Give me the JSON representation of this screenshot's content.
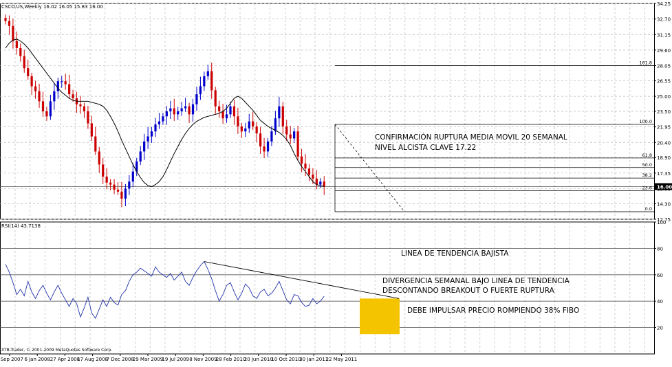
{
  "colors": {
    "background": "#ffffff",
    "grid": "#b8b8b8",
    "frame": "#000000",
    "bull_candle": "#0000cc",
    "bear_candle": "#cc0000",
    "moving_average": "#000000",
    "rsi_line": "#2233aa",
    "fibo": "#000000",
    "annotation_text": "#000000",
    "highlight": "#f5c400"
  },
  "chart_data": [
    {
      "type": "candlestick",
      "title": "CSCO.US,Weekly  16.02 16.05 15.83 16.00",
      "symbol": "CSCO.US",
      "timeframe": "Weekly",
      "ohlc_last": {
        "open": 16.02,
        "high": 16.05,
        "low": 15.83,
        "close": 16.0
      },
      "x_tick_labels": [
        "5 Sep 2007",
        "6 Jan 2008",
        "27 Apr 2008",
        "17 Aug 2008",
        "7 Dec 2008",
        "29 Mar 2009",
        "19 Jul 2009",
        "8 Nov 2009",
        "28 Feb 2010",
        "20 Jun 2010",
        "10 Oct 2010",
        "30 Jan 2011",
        "22 May 2011"
      ],
      "y_tick_labels": [
        "34.25",
        "32.70",
        "31.15",
        "29.60",
        "28.05",
        "26.55",
        "25.00",
        "23.50",
        "21.95",
        "20.40",
        "18.90",
        "17.35",
        "15.80",
        "14.30",
        "12.75"
      ],
      "ylim": [
        12.75,
        34.25
      ],
      "current_price_label": "16.00",
      "moving_average": {
        "period": 20,
        "values": [
          29.8,
          30.3,
          30.6,
          30.7,
          30.5,
          30.2,
          29.8,
          29.3,
          28.8,
          28.3,
          27.8,
          27.3,
          26.8,
          26.3,
          25.8,
          25.4,
          25.1,
          24.8,
          24.6,
          24.5,
          24.5,
          24.5,
          24.5,
          24.4,
          24.3,
          24.2,
          24.0,
          23.6,
          23.0,
          22.3,
          21.5,
          20.6,
          19.8,
          19.0,
          18.2,
          17.5,
          16.9,
          16.4,
          16.1,
          16.0,
          16.2,
          16.5,
          17.0,
          17.7,
          18.5,
          19.3,
          20.0,
          20.7,
          21.3,
          21.8,
          22.2,
          22.5,
          22.7,
          22.9,
          23.0,
          23.1,
          23.2,
          23.3,
          23.5,
          23.8,
          24.3,
          24.8,
          25.0,
          24.8,
          24.4,
          24.0,
          23.6,
          23.1,
          22.6,
          22.3,
          22.0,
          21.8,
          21.6,
          21.4,
          21.1,
          20.7,
          20.1,
          19.3,
          18.6,
          18.0,
          17.5,
          17.0,
          16.5,
          16.2,
          16.1,
          16.0
        ]
      },
      "series": [
        {
          "name": "CSCO.US",
          "close": [
            32.5,
            32.0,
            30.5,
            29.8,
            29.0,
            27.8,
            27.0,
            26.0,
            25.5,
            24.5,
            23.5,
            23.0,
            24.5,
            25.5,
            26.5,
            26.5,
            26.2,
            25.2,
            24.8,
            24.2,
            24.0,
            23.5,
            22.3,
            21.0,
            19.5,
            18.2,
            17.0,
            16.4,
            16.2,
            15.7,
            15.5,
            14.8,
            15.8,
            16.5,
            17.5,
            18.5,
            19.5,
            20.5,
            21.0,
            21.5,
            22.2,
            22.5,
            23.0,
            23.5,
            23.8,
            23.2,
            23.5,
            23.8,
            24.0,
            23.2,
            24.2,
            25.2,
            26.0,
            27.0,
            27.5,
            25.6,
            24.0,
            23.5,
            22.8,
            23.2,
            24.0,
            23.0,
            22.0,
            21.5,
            21.8,
            22.5,
            22.0,
            21.3,
            20.0,
            19.5,
            20.5,
            21.5,
            22.8,
            24.0,
            22.0,
            21.2,
            20.8,
            21.5,
            19.0,
            18.3,
            17.8,
            17.2,
            16.8,
            16.2,
            16.5,
            16.0
          ]
        },
        {
          "name": "Media Movil 20",
          "values": "moving_average"
        }
      ],
      "fibonacci_levels": [
        {
          "label": "161.8",
          "price": 28.05
        },
        {
          "label": "100.0",
          "price": 22.2
        },
        {
          "label": "61.8",
          "price": 18.85
        },
        {
          "label": "50.0",
          "price": 17.9
        },
        {
          "label": "38.2",
          "price": 16.85
        },
        {
          "label": "23.6",
          "price": 15.6
        },
        {
          "label": "0.0",
          "price": 13.5
        }
      ],
      "annotations": [
        "CONFIRMACIÓN RUPTURA MEDIA MOVIL 20 SEMANAL",
        "NIVEL ALCISTA CLAVE 17.22"
      ]
    },
    {
      "type": "line",
      "title": "RSI(14) 43.7138",
      "indicator": "RSI",
      "period": 14,
      "last_value": 43.7138,
      "ylim": [
        0,
        100
      ],
      "y_tick_labels": [
        "100",
        "80",
        "60",
        "40",
        "20"
      ],
      "levels": [
        80,
        60,
        40,
        20
      ],
      "series": [
        {
          "name": "RSI(14)",
          "values": [
            68,
            62,
            54,
            45,
            49,
            44,
            55,
            47,
            42,
            48,
            52,
            46,
            41,
            47,
            52,
            46,
            41,
            36,
            42,
            38,
            28,
            35,
            43,
            31,
            27,
            34,
            41,
            36,
            43,
            39,
            37,
            45,
            48,
            55,
            60,
            62,
            65,
            63,
            61,
            59,
            66,
            62,
            60,
            58,
            61,
            56,
            59,
            62,
            55,
            52,
            58,
            63,
            67,
            70,
            64,
            57,
            48,
            40,
            45,
            52,
            54,
            47,
            41,
            46,
            53,
            50,
            44,
            42,
            47,
            49,
            44,
            46,
            50,
            55,
            48,
            41,
            38,
            45,
            44,
            39,
            36,
            37,
            42,
            38,
            40,
            43.7
          ]
        }
      ],
      "annotations": [
        "LINEA DE TENDENCIA BAJISTA",
        "DIVERGENCIA SEMANAL BAJO LINEA DE TENDENCIA",
        "DESCONTANDO BREAKOUT O FUERTE RUPTURA",
        "DEBE IMPULSAR PRECIO ROMPIENDO 38% FIBO"
      ]
    }
  ],
  "footer": {
    "copyright": "XTB-Trader, © 2001-2009 MetaQuotes Software Corp."
  }
}
